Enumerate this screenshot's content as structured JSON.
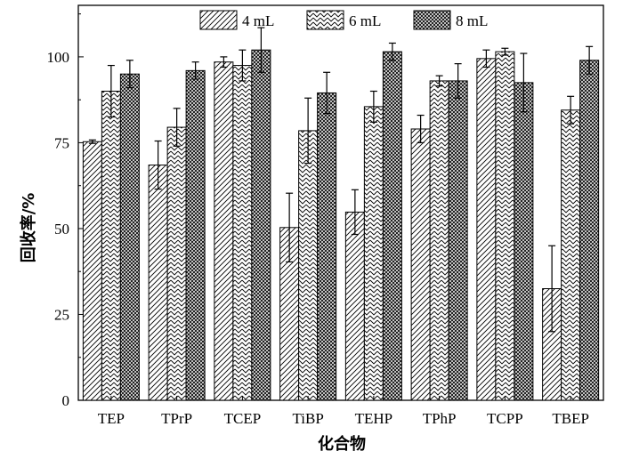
{
  "chart_data": {
    "type": "bar",
    "xlabel": "化合物",
    "ylabel": "回收率/%",
    "ylim": [
      0,
      115
    ],
    "yticks": [
      0,
      25,
      50,
      75,
      100
    ],
    "categories": [
      "TEP",
      "TPrP",
      "TCEP",
      "TiBP",
      "TEHP",
      "TPhP",
      "TCPP",
      "TBEP"
    ],
    "legend_position": "top",
    "grid": false,
    "series": [
      {
        "name": "4 mL",
        "pattern": "diagonal-hatch",
        "values": [
          75.3,
          68.5,
          98.5,
          50.3,
          54.8,
          79.0,
          99.5,
          32.5
        ],
        "errors": [
          0.5,
          7.0,
          1.5,
          10.0,
          6.5,
          4.0,
          2.5,
          12.5
        ]
      },
      {
        "name": "6 mL",
        "pattern": "herringbone",
        "values": [
          90.0,
          79.5,
          97.5,
          78.5,
          85.5,
          93.0,
          101.5,
          84.5
        ],
        "errors": [
          7.5,
          5.5,
          4.5,
          9.5,
          4.5,
          1.5,
          1.0,
          4.0
        ]
      },
      {
        "name": "8 mL",
        "pattern": "crosshatch",
        "values": [
          95.0,
          96.0,
          102.0,
          89.5,
          101.5,
          93.0,
          92.5,
          99.0
        ],
        "errors": [
          4.0,
          2.5,
          6.5,
          6.0,
          2.5,
          5.0,
          8.5,
          4.0
        ]
      }
    ]
  }
}
